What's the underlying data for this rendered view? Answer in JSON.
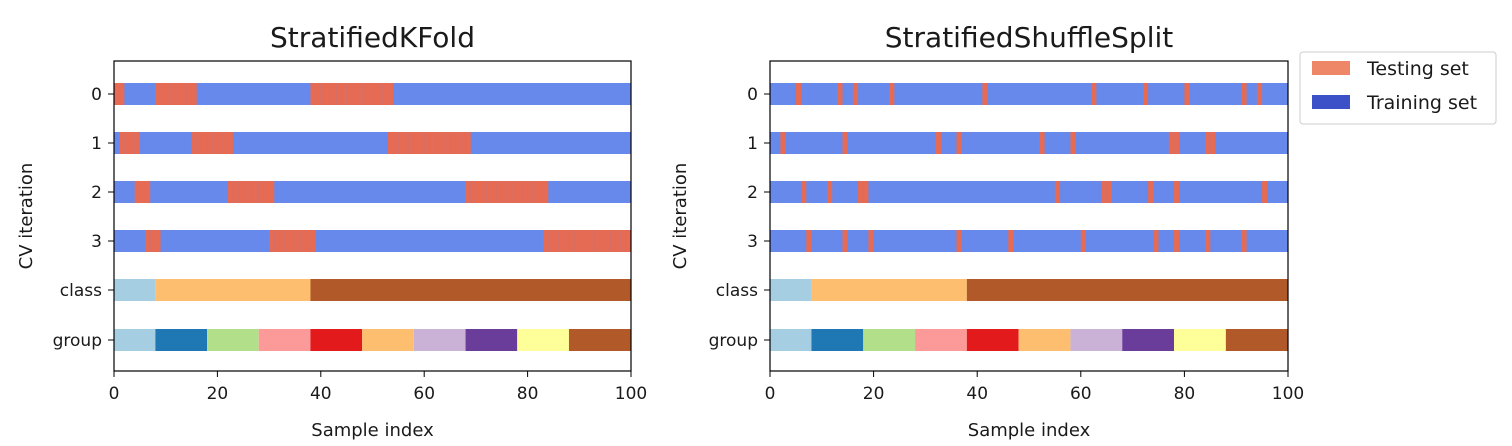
{
  "colors": {
    "testing": "#e56b54",
    "training": "#6889ec",
    "legend_testing": "#ee8668",
    "legend_training": "#3c51c8",
    "class": [
      "#a6cee3",
      "#fdbf6f",
      "#b15928"
    ],
    "group": [
      "#a6cee3",
      "#1f78b4",
      "#b2df8a",
      "#fb9a99",
      "#e31a1c",
      "#fdbf6f",
      "#cab2d6",
      "#6a3d9a",
      "#ffff99",
      "#b15928"
    ]
  },
  "legend": {
    "testing_label": "Testing set",
    "training_label": "Training set"
  },
  "chart_data": [
    {
      "type": "bar",
      "title": "StratifiedKFold",
      "xlabel": "Sample index",
      "ylabel": "CV iteration",
      "xlim": [
        0,
        100
      ],
      "xticks": [
        0,
        20,
        40,
        60,
        80,
        100
      ],
      "xtick_labels": [
        "0",
        "20",
        "40",
        "60",
        "80",
        "100"
      ],
      "ytick_labels": [
        "0",
        "1",
        "2",
        "3",
        "class",
        "group"
      ],
      "iterations": [
        {
          "label": "0",
          "test_indices": [
            0,
            1,
            8,
            9,
            10,
            11,
            12,
            13,
            14,
            15,
            38,
            39,
            40,
            41,
            42,
            43,
            44,
            45,
            46,
            47,
            48,
            49,
            50,
            51,
            52,
            53
          ]
        },
        {
          "label": "1",
          "test_indices": [
            1,
            2,
            3,
            4,
            15,
            16,
            17,
            18,
            19,
            20,
            21,
            22,
            53,
            54,
            55,
            56,
            57,
            58,
            59,
            60,
            61,
            62,
            63,
            64,
            65,
            66,
            67,
            68
          ]
        },
        {
          "label": "2",
          "test_indices": [
            4,
            5,
            6,
            22,
            23,
            24,
            25,
            26,
            27,
            28,
            29,
            30,
            68,
            69,
            70,
            71,
            72,
            73,
            74,
            75,
            76,
            77,
            78,
            79,
            80,
            81,
            82,
            83
          ]
        },
        {
          "label": "3",
          "test_indices": [
            6,
            7,
            8,
            30,
            31,
            32,
            33,
            34,
            35,
            36,
            37,
            38,
            83,
            84,
            85,
            86,
            87,
            88,
            89,
            90,
            91,
            92,
            93,
            94,
            95,
            96,
            97,
            98,
            99
          ]
        }
      ],
      "class": {
        "label": "class",
        "segments": [
          {
            "start": 0,
            "end": 8,
            "index": 0
          },
          {
            "start": 8,
            "end": 38,
            "index": 1
          },
          {
            "start": 38,
            "end": 100,
            "index": 2
          }
        ]
      },
      "group": {
        "label": "group",
        "segments": [
          {
            "start": 0,
            "end": 8,
            "index": 0
          },
          {
            "start": 8,
            "end": 18,
            "index": 1
          },
          {
            "start": 18,
            "end": 28,
            "index": 2
          },
          {
            "start": 28,
            "end": 38,
            "index": 3
          },
          {
            "start": 38,
            "end": 48,
            "index": 4
          },
          {
            "start": 48,
            "end": 58,
            "index": 5
          },
          {
            "start": 58,
            "end": 68,
            "index": 6
          },
          {
            "start": 68,
            "end": 78,
            "index": 7
          },
          {
            "start": 78,
            "end": 88,
            "index": 8
          },
          {
            "start": 88,
            "end": 100,
            "index": 9
          }
        ]
      }
    },
    {
      "type": "bar",
      "title": "StratifiedShuffleSplit",
      "xlabel": "Sample index",
      "ylabel": "CV iteration",
      "xlim": [
        0,
        100
      ],
      "xticks": [
        0,
        20,
        40,
        60,
        80,
        100
      ],
      "xtick_labels": [
        "0",
        "20",
        "40",
        "60",
        "80",
        "100"
      ],
      "ytick_labels": [
        "0",
        "1",
        "2",
        "3",
        "class",
        "group"
      ],
      "iterations": [
        {
          "label": "0",
          "test_indices": [
            5,
            13,
            16,
            23,
            41,
            62,
            72,
            80,
            91,
            94
          ]
        },
        {
          "label": "1",
          "test_indices": [
            2,
            14,
            32,
            36,
            52,
            58,
            77,
            78,
            84,
            85
          ]
        },
        {
          "label": "2",
          "test_indices": [
            6,
            11,
            17,
            18,
            55,
            64,
            65,
            73,
            78,
            95
          ]
        },
        {
          "label": "3",
          "test_indices": [
            7,
            14,
            19,
            36,
            46,
            60,
            74,
            78,
            84,
            91
          ]
        }
      ],
      "class": {
        "label": "class",
        "segments": [
          {
            "start": 0,
            "end": 8,
            "index": 0
          },
          {
            "start": 8,
            "end": 38,
            "index": 1
          },
          {
            "start": 38,
            "end": 100,
            "index": 2
          }
        ]
      },
      "group": {
        "label": "group",
        "segments": [
          {
            "start": 0,
            "end": 8,
            "index": 0
          },
          {
            "start": 8,
            "end": 18,
            "index": 1
          },
          {
            "start": 18,
            "end": 28,
            "index": 2
          },
          {
            "start": 28,
            "end": 38,
            "index": 3
          },
          {
            "start": 38,
            "end": 48,
            "index": 4
          },
          {
            "start": 48,
            "end": 58,
            "index": 5
          },
          {
            "start": 58,
            "end": 68,
            "index": 6
          },
          {
            "start": 68,
            "end": 78,
            "index": 7
          },
          {
            "start": 78,
            "end": 88,
            "index": 8
          },
          {
            "start": 88,
            "end": 100,
            "index": 9
          }
        ]
      }
    }
  ]
}
